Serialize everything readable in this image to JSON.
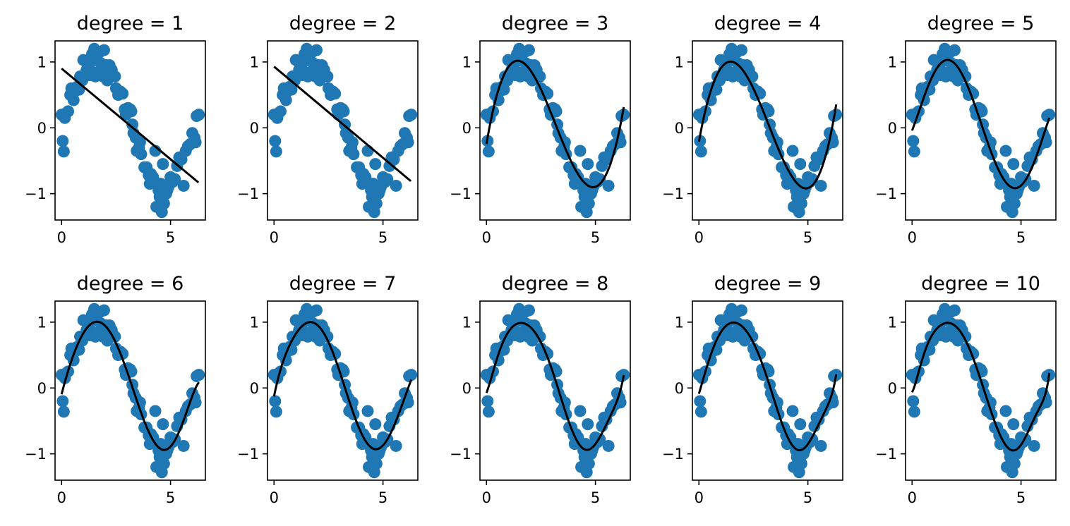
{
  "figure": {
    "marker_color": "#1f77b4",
    "fit_color": "#000000"
  },
  "chart_data": [
    {
      "type": "scatter",
      "title": "degree = 1",
      "degree": 1,
      "xlabel": "",
      "ylabel": "",
      "xlim": [
        -0.3,
        6.6
      ],
      "ylim": [
        -1.4,
        1.32
      ],
      "xticks": [
        "0",
        "5"
      ],
      "yticks": [
        "−1",
        "0",
        "1"
      ],
      "grid": false,
      "fit_series": "linear fit",
      "fit_endpoints": [
        [
          0.0,
          0.9
        ],
        [
          6.28,
          -0.83
        ]
      ]
    },
    {
      "type": "scatter",
      "title": "degree = 2",
      "degree": 2,
      "xlabel": "",
      "ylabel": "",
      "xlim": [
        -0.3,
        6.6
      ],
      "ylim": [
        -1.4,
        1.32
      ],
      "xticks": [
        "0",
        "5"
      ],
      "yticks": [
        "−1",
        "0",
        "1"
      ],
      "grid": false,
      "fit_endpoints": [
        [
          0.0,
          0.93
        ],
        [
          6.28,
          -0.81
        ]
      ]
    },
    {
      "type": "scatter",
      "title": "degree = 3",
      "degree": 3,
      "xlabel": "",
      "ylabel": "",
      "xlim": [
        -0.3,
        6.6
      ],
      "ylim": [
        -1.4,
        1.32
      ],
      "xticks": [
        "0",
        "5"
      ],
      "yticks": [
        "−1",
        "0",
        "1"
      ],
      "grid": false
    },
    {
      "type": "scatter",
      "title": "degree = 4",
      "degree": 4,
      "xlabel": "",
      "ylabel": "",
      "xlim": [
        -0.3,
        6.6
      ],
      "ylim": [
        -1.4,
        1.32
      ],
      "xticks": [
        "0",
        "5"
      ],
      "yticks": [
        "−1",
        "0",
        "1"
      ],
      "grid": false
    },
    {
      "type": "scatter",
      "title": "degree = 5",
      "degree": 5,
      "xlabel": "",
      "ylabel": "",
      "xlim": [
        -0.3,
        6.6
      ],
      "ylim": [
        -1.4,
        1.32
      ],
      "xticks": [
        "0",
        "5"
      ],
      "yticks": [
        "−1",
        "0",
        "1"
      ],
      "grid": false
    },
    {
      "type": "scatter",
      "title": "degree = 6",
      "degree": 6,
      "xlabel": "",
      "ylabel": "",
      "xlim": [
        -0.3,
        6.6
      ],
      "ylim": [
        -1.4,
        1.32
      ],
      "xticks": [
        "0",
        "5"
      ],
      "yticks": [
        "−1",
        "0",
        "1"
      ],
      "grid": false
    },
    {
      "type": "scatter",
      "title": "degree = 7",
      "degree": 7,
      "xlabel": "",
      "ylabel": "",
      "xlim": [
        -0.3,
        6.6
      ],
      "ylim": [
        -1.4,
        1.32
      ],
      "xticks": [
        "0",
        "5"
      ],
      "yticks": [
        "−1",
        "0",
        "1"
      ],
      "grid": false
    },
    {
      "type": "scatter",
      "title": "degree = 8",
      "degree": 8,
      "xlabel": "",
      "ylabel": "",
      "xlim": [
        -0.3,
        6.6
      ],
      "ylim": [
        -1.4,
        1.32
      ],
      "xticks": [
        "0",
        "5"
      ],
      "yticks": [
        "−1",
        "0",
        "1"
      ],
      "grid": false
    },
    {
      "type": "scatter",
      "title": "degree = 9",
      "degree": 9,
      "xlabel": "",
      "ylabel": "",
      "xlim": [
        -0.3,
        6.6
      ],
      "ylim": [
        -1.4,
        1.32
      ],
      "xticks": [
        "0",
        "5"
      ],
      "yticks": [
        "−1",
        "0",
        "1"
      ],
      "grid": false
    },
    {
      "type": "scatter",
      "title": "degree = 10",
      "degree": 10,
      "xlabel": "",
      "ylabel": "",
      "xlim": [
        -0.3,
        6.6
      ],
      "ylim": [
        -1.4,
        1.32
      ],
      "xticks": [
        "0",
        "5"
      ],
      "yticks": [
        "−1",
        "0",
        "1"
      ],
      "grid": false
    }
  ],
  "scatter_points": [
    [
      0.0,
      0.2
    ],
    [
      0.05,
      -0.2
    ],
    [
      0.1,
      -0.36
    ],
    [
      0.15,
      0.15
    ],
    [
      0.2,
      0.22
    ],
    [
      0.3,
      0.25
    ],
    [
      0.4,
      0.5
    ],
    [
      0.45,
      0.6
    ],
    [
      0.55,
      0.42
    ],
    [
      0.6,
      0.55
    ],
    [
      0.7,
      0.62
    ],
    [
      0.8,
      0.58
    ],
    [
      0.85,
      0.78
    ],
    [
      0.95,
      0.72
    ],
    [
      1.0,
      1.03
    ],
    [
      1.1,
      0.8
    ],
    [
      1.15,
      0.88
    ],
    [
      1.2,
      0.98
    ],
    [
      1.25,
      0.92
    ],
    [
      1.3,
      0.8
    ],
    [
      1.35,
      1.0
    ],
    [
      1.4,
      1.12
    ],
    [
      1.5,
      1.2
    ],
    [
      1.55,
      0.78
    ],
    [
      1.6,
      1.05
    ],
    [
      1.7,
      0.85
    ],
    [
      1.75,
      1.15
    ],
    [
      1.8,
      0.98
    ],
    [
      1.9,
      0.78
    ],
    [
      1.95,
      1.18
    ],
    [
      2.0,
      0.88
    ],
    [
      2.05,
      0.95
    ],
    [
      2.1,
      0.72
    ],
    [
      2.2,
      0.95
    ],
    [
      2.3,
      0.88
    ],
    [
      2.45,
      0.78
    ],
    [
      2.5,
      0.6
    ],
    [
      2.6,
      0.5
    ],
    [
      2.7,
      0.55
    ],
    [
      2.8,
      0.52
    ],
    [
      2.9,
      0.28
    ],
    [
      2.95,
      0.2
    ],
    [
      3.05,
      0.3
    ],
    [
      3.15,
      0.28
    ],
    [
      3.2,
      0.25
    ],
    [
      3.25,
      0.05
    ],
    [
      3.3,
      -0.08
    ],
    [
      3.4,
      -0.15
    ],
    [
      3.45,
      -0.35
    ],
    [
      3.55,
      -0.3
    ],
    [
      3.6,
      -0.22
    ],
    [
      3.65,
      -0.4
    ],
    [
      3.8,
      -0.6
    ],
    [
      3.9,
      -0.6
    ],
    [
      4.0,
      -0.72
    ],
    [
      4.05,
      -0.85
    ],
    [
      4.1,
      -0.7
    ],
    [
      4.2,
      -0.75
    ],
    [
      4.3,
      -0.35
    ],
    [
      4.35,
      -1.2
    ],
    [
      4.45,
      -0.95
    ],
    [
      4.5,
      -1.05
    ],
    [
      4.55,
      -0.85
    ],
    [
      4.6,
      -1.28
    ],
    [
      4.65,
      -0.55
    ],
    [
      4.7,
      -1.15
    ],
    [
      4.8,
      -1.0
    ],
    [
      4.85,
      -0.95
    ],
    [
      4.9,
      -0.9
    ],
    [
      5.0,
      -0.75
    ],
    [
      5.1,
      -0.82
    ],
    [
      5.2,
      -0.78
    ],
    [
      5.3,
      -0.58
    ],
    [
      5.4,
      -0.45
    ],
    [
      5.5,
      -0.48
    ],
    [
      5.6,
      -0.88
    ],
    [
      5.7,
      -0.35
    ],
    [
      5.8,
      -0.28
    ],
    [
      5.9,
      -0.25
    ],
    [
      6.0,
      -0.08
    ],
    [
      6.1,
      -0.15
    ],
    [
      6.15,
      -0.22
    ],
    [
      6.2,
      0.18
    ],
    [
      6.3,
      0.2
    ]
  ]
}
